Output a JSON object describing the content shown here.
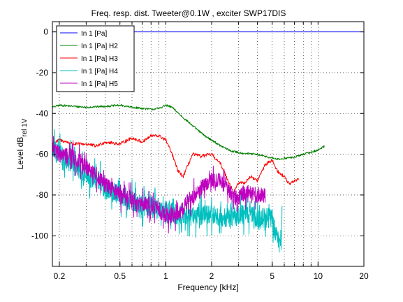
{
  "chart_data": {
    "type": "line",
    "title": "Freq. resp. dist.     Tweeter@0.1W , exciter SWP17DIS",
    "xlabel": "Frequency [kHz]",
    "ylabel": "Level dB",
    "ylabel_sub": "rel 1V",
    "x_scale": "log",
    "xlim": [
      0.18,
      20
    ],
    "ylim": [
      -115,
      5
    ],
    "xticks": [
      0.2,
      0.5,
      1,
      2,
      5,
      10,
      20
    ],
    "xtick_labels": [
      "0.2",
      "0.5",
      "1",
      "2",
      "5",
      "10",
      "20"
    ],
    "yticks": [
      0,
      -20,
      -40,
      -60,
      -80,
      -100
    ],
    "ytick_labels": [
      "0",
      "-20",
      "-40",
      "-60",
      "-80",
      "-100"
    ],
    "grid": true,
    "legend_position": "top-left",
    "series": [
      {
        "name": "In 1 [Pa]",
        "color": "#0000ff",
        "noise": 0,
        "x": [
          0.18,
          20
        ],
        "y": [
          0,
          0
        ]
      },
      {
        "name": "In 1 [Pa] H2",
        "color": "#008000",
        "noise": 0.5,
        "x": [
          0.18,
          0.2,
          0.25,
          0.3,
          0.4,
          0.5,
          0.6,
          0.7,
          0.8,
          0.9,
          1.0,
          1.1,
          1.3,
          1.5,
          1.8,
          2.0,
          2.3,
          2.7,
          3.2,
          3.8,
          4.5,
          5.0,
          5.5,
          6.0,
          7.0,
          8.0,
          9.0,
          10.0,
          11.0
        ],
        "y": [
          -37,
          -36,
          -36.5,
          -37,
          -36.5,
          -36,
          -37,
          -37.5,
          -38,
          -37.5,
          -36,
          -37,
          -42,
          -46,
          -51,
          -53,
          -56,
          -58.5,
          -59.5,
          -60,
          -61,
          -62,
          -62.5,
          -62,
          -61.5,
          -60,
          -59,
          -58,
          -56
        ]
      },
      {
        "name": "In 1 [Pa] H3",
        "color": "#ff0000",
        "noise": 0.8,
        "x": [
          0.18,
          0.2,
          0.25,
          0.3,
          0.35,
          0.4,
          0.5,
          0.6,
          0.7,
          0.8,
          0.9,
          1.0,
          1.1,
          1.2,
          1.3,
          1.5,
          1.7,
          2.0,
          2.3,
          2.5,
          2.8,
          3.0,
          3.3,
          3.6,
          4.0,
          4.5,
          5.0,
          5.5,
          6.0,
          6.5,
          7.0,
          7.5
        ],
        "y": [
          -55,
          -53,
          -55,
          -55,
          -56,
          -54,
          -55,
          -52,
          -54,
          -51,
          -51,
          -53,
          -60,
          -68,
          -71,
          -60,
          -61,
          -60,
          -65,
          -71,
          -79,
          -74,
          -74,
          -71,
          -73,
          -65,
          -63,
          -69,
          -71,
          -75,
          -73,
          -72
        ]
      },
      {
        "name": "In 1 [Pa] H4",
        "color": "#00bfbf",
        "noise": 5,
        "x": [
          0.18,
          0.2,
          0.25,
          0.3,
          0.35,
          0.4,
          0.5,
          0.6,
          0.7,
          0.8,
          0.9,
          1.0,
          1.2,
          1.4,
          1.6,
          1.8,
          2.0,
          2.5,
          3.0,
          3.5,
          4.0,
          4.5,
          5.0,
          5.3,
          5.6,
          5.8
        ],
        "y": [
          -58,
          -60,
          -65,
          -71,
          -72,
          -77,
          -80,
          -83,
          -85,
          -86,
          -88,
          -88,
          -90,
          -91,
          -90,
          -90,
          -90,
          -91,
          -90,
          -89,
          -92,
          -91,
          -92,
          -100,
          -104,
          -96
        ]
      },
      {
        "name": "In 1 [Pa] H5",
        "color": "#bf00bf",
        "noise": 4,
        "x": [
          0.18,
          0.2,
          0.25,
          0.3,
          0.35,
          0.4,
          0.5,
          0.6,
          0.7,
          0.8,
          0.9,
          1.0,
          1.2,
          1.4,
          1.6,
          1.8,
          2.0,
          2.2,
          2.5,
          2.7,
          3.0,
          3.2,
          3.5,
          4.0,
          4.5
        ],
        "y": [
          -57,
          -60,
          -62,
          -66,
          -70,
          -75,
          -80,
          -82,
          -85,
          -85,
          -87,
          -90,
          -90,
          -83,
          -79,
          -75,
          -73,
          -73,
          -75,
          -80,
          -82,
          -79,
          -78,
          -80,
          -80
        ]
      }
    ]
  }
}
